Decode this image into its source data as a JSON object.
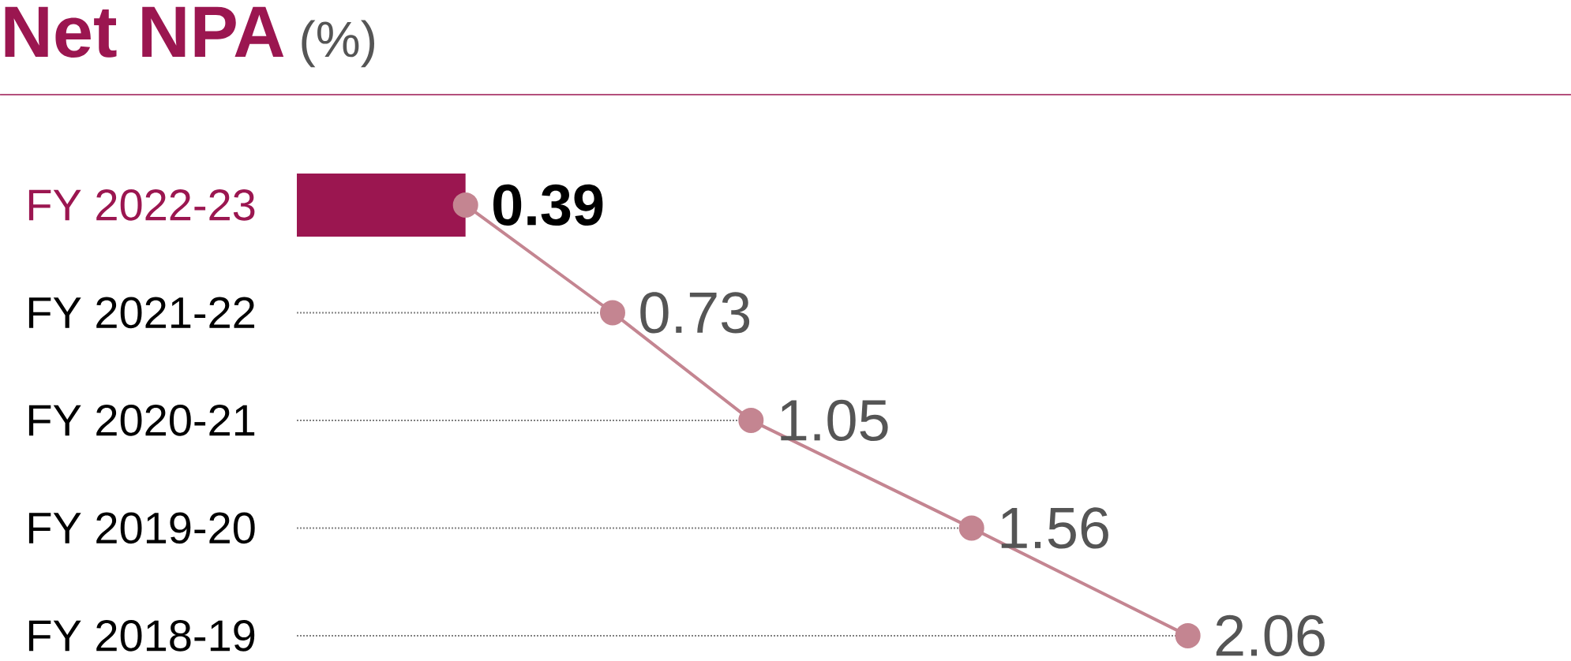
{
  "chart_data": {
    "type": "lollipop",
    "title": "Net NPA",
    "subtitle": "(%)",
    "orientation": "horizontal",
    "categories": [
      "FY 2022-23",
      "FY 2021-22",
      "FY 2020-21",
      "FY 2019-20",
      "FY 2018-19"
    ],
    "series": [
      {
        "type": "bar",
        "color": "#9b1650",
        "values": [
          0.39,
          null,
          null,
          null,
          null
        ]
      },
      {
        "color": "#c48591",
        "values": [
          0.39,
          0.73,
          1.05,
          1.56,
          2.06
        ],
        "value_labels": [
          "0.39",
          "0.73",
          "1.05",
          "1.56",
          "2.06"
        ]
      }
    ],
    "marker": "circle",
    "line_style": "solid"
  }
}
